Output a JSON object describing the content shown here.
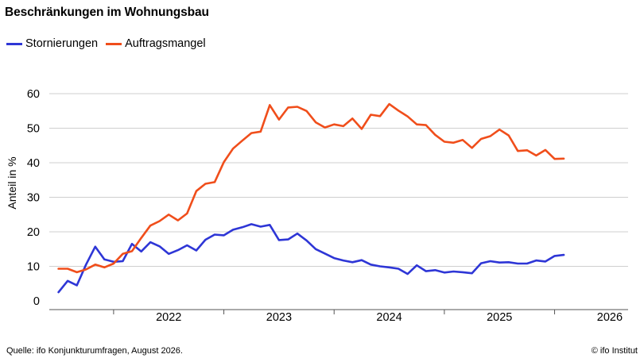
{
  "colors": {
    "background": "#ffffff",
    "grid": "#cfcfcf",
    "axis": "#555555",
    "stornierungen": "#2e36d6",
    "auftragsmangel": "#f04e1b"
  },
  "footer": {
    "source": "Quelle: ifo Konjunkturumfragen,  August 2026.",
    "copyright": "© ifo Institut"
  },
  "chart_data": {
    "type": "line",
    "title": "Beschränkungen im Wohnungsbau",
    "ylabel": "Anteil in %",
    "xlabel": "",
    "ylim": [
      0,
      60
    ],
    "yticks": [
      0,
      10,
      20,
      30,
      40,
      50,
      60
    ],
    "grid": true,
    "legend_position": "top-left",
    "xrange": [
      "2021-06",
      "2026-09"
    ],
    "x_tick_labels": [
      "2022",
      "2023",
      "2024",
      "2025",
      "2026"
    ],
    "x": [
      "2021-07",
      "2021-08",
      "2021-09",
      "2021-10",
      "2021-11",
      "2021-12",
      "2022-01",
      "2022-02",
      "2022-03",
      "2022-04",
      "2022-05",
      "2022-06",
      "2022-07",
      "2022-08",
      "2022-09",
      "2022-10",
      "2022-11",
      "2022-12",
      "2023-01",
      "2023-02",
      "2023-03",
      "2023-04",
      "2023-05",
      "2023-06",
      "2023-07",
      "2023-08",
      "2023-09",
      "2023-10",
      "2023-11",
      "2023-12",
      "2024-01",
      "2024-02",
      "2024-03",
      "2024-04",
      "2024-05",
      "2024-06",
      "2024-07",
      "2024-08",
      "2024-09",
      "2024-10",
      "2024-11",
      "2024-12",
      "2025-01",
      "2025-02",
      "2025-03",
      "2025-04",
      "2025-05",
      "2025-06",
      "2025-07",
      "2025-08",
      "2025-09",
      "2025-10",
      "2025-11",
      "2025-12",
      "2026-01",
      "2026-02"
    ],
    "series": [
      {
        "name": "Stornierungen",
        "color": "#2e36d6",
        "values": [
          2.5,
          5.8,
          4.5,
          10.5,
          15.7,
          12.0,
          11.3,
          11.5,
          16.5,
          14.3,
          17.0,
          15.8,
          13.6,
          14.7,
          16.1,
          14.6,
          17.7,
          19.2,
          19.0,
          20.6,
          21.3,
          22.2,
          21.5,
          22.0,
          17.6,
          17.8,
          19.5,
          17.5,
          15.0,
          13.7,
          12.4,
          11.7,
          11.2,
          11.8,
          10.5,
          10.0,
          9.7,
          9.3,
          7.8,
          10.3,
          8.6,
          8.9,
          8.2,
          8.5,
          8.3,
          8.0,
          10.9,
          11.5,
          11.1,
          11.2,
          10.8,
          10.8,
          11.7,
          11.4,
          13.0,
          13.3
        ]
      },
      {
        "name": "Auftragsmangel",
        "color": "#f04e1b",
        "values": [
          9.3,
          9.3,
          8.3,
          9.1,
          10.5,
          9.7,
          10.8,
          13.6,
          14.4,
          18.2,
          21.8,
          23.1,
          25.0,
          23.3,
          25.3,
          31.8,
          33.9,
          34.4,
          40.2,
          44.1,
          46.4,
          48.6,
          49.0,
          56.7,
          52.5,
          56.0,
          56.2,
          55.0,
          51.7,
          50.2,
          51.1,
          50.6,
          52.8,
          49.8,
          53.9,
          53.5,
          57.0,
          55.1,
          53.4,
          51.1,
          50.9,
          48.1,
          46.1,
          45.8,
          46.6,
          44.3,
          46.9,
          47.7,
          49.6,
          47.9,
          43.4,
          43.6,
          42.1,
          43.7,
          41.1,
          41.2
        ]
      }
    ]
  }
}
